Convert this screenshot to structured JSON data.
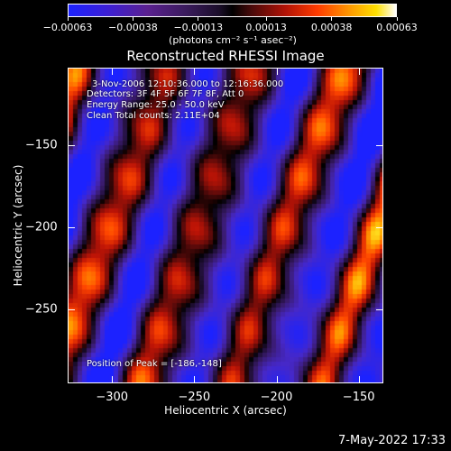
{
  "chart_data": {
    "type": "heatmap",
    "title": "Reconstructed RHESSI Image",
    "xlabel": "Heliocentric X (arcsec)",
    "ylabel": "Heliocentric Y (arcsec)",
    "xlim": [
      -327,
      -135
    ],
    "ylim": [
      -295,
      -103
    ],
    "x_ticks": [
      "−300",
      "−250",
      "−200",
      "−150"
    ],
    "x_tick_values": [
      -300,
      -250,
      -200,
      -150
    ],
    "y_ticks": [
      "−150",
      "−200",
      "−250"
    ],
    "y_tick_values": [
      -150,
      -200,
      -250
    ],
    "colorbar": {
      "ticks": [
        "−0.00063",
        "−0.00038",
        "−0.00013",
        "0.00013",
        "0.00038",
        "0.00063"
      ],
      "tick_values": [
        -0.00063,
        -0.00038,
        -0.00013,
        0.00013,
        0.00038,
        0.00063
      ],
      "range": [
        -0.00063,
        0.00063
      ],
      "unit": "(photons cm⁻² s⁻¹ asec⁻²)"
    },
    "annotations": {
      "time": "3-Nov-2006 12:10:36.000 to 12:16:36.000",
      "detectors": "Detectors: 3F 4F 5F 6F 7F 8F, Att 0",
      "energy": "Energy Range: 25.0 - 50.0 keV",
      "method": "Clean     Total counts: 2.11E+04",
      "peak": "Position of Peak = [-186,-148]"
    },
    "peak_position": [
      -186,
      -148
    ],
    "colormap": [
      "#1c22ff",
      "#3a1b5c",
      "#000000",
      "#b01206",
      "#ff9a00",
      "#ffffff"
    ]
  },
  "timestamp": "7-May-2022 17:33"
}
